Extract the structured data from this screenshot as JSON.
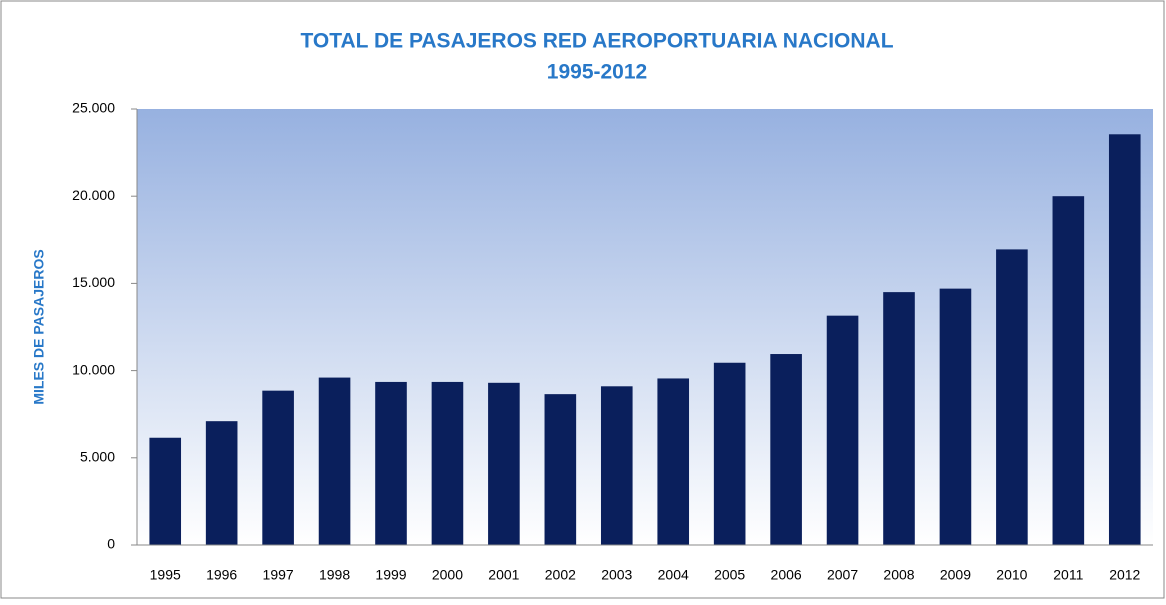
{
  "chart_data": {
    "type": "bar",
    "title": "TOTAL DE PASAJEROS RED AEROPORTUARIA NACIONAL",
    "subtitle": "1995-2012",
    "y_label": "MILES DE  PASAJEROS",
    "categories": [
      "1995",
      "1996",
      "1997",
      "1998",
      "1999",
      "2000",
      "2001",
      "2002",
      "2003",
      "2004",
      "2005",
      "2006",
      "2007",
      "2008",
      "2009",
      "2010",
      "2011",
      "2012"
    ],
    "values": [
      6150,
      7100,
      8850,
      9600,
      9350,
      9350,
      9300,
      8650,
      9100,
      9550,
      10450,
      10950,
      13150,
      14500,
      14700,
      16950,
      20000,
      23550
    ],
    "color": "#0a1f5c",
    "ylim": [
      0,
      25000
    ],
    "yticks": [
      0,
      {
        "value": 5000,
        "label": "5.000"
      },
      {
        "value": 10000,
        "label": "10.000"
      },
      {
        "value": 15000,
        "label": "15.000"
      },
      {
        "value": 20000,
        "label": "20.000"
      },
      {
        "value": 25000,
        "label": "25.000"
      }
    ],
    "grid": false
  }
}
